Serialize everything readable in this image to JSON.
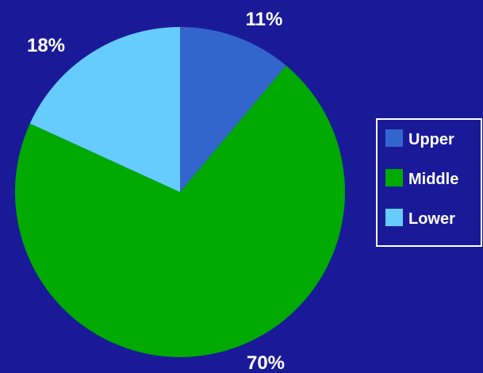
{
  "chart_data": {
    "type": "pie",
    "categories": [
      "Upper",
      "Middle",
      "Lower"
    ],
    "values": [
      11,
      70,
      18
    ],
    "value_labels": [
      "11%",
      "70%",
      "18%"
    ],
    "colors": [
      "#3366cc",
      "#00aa00",
      "#66ccff"
    ],
    "start_angle_deg": 0,
    "direction": "clockwise",
    "background": "#1a1a99",
    "legend": {
      "position": "right",
      "border_color": "#ffffff",
      "text_color": "#ffffff"
    }
  }
}
